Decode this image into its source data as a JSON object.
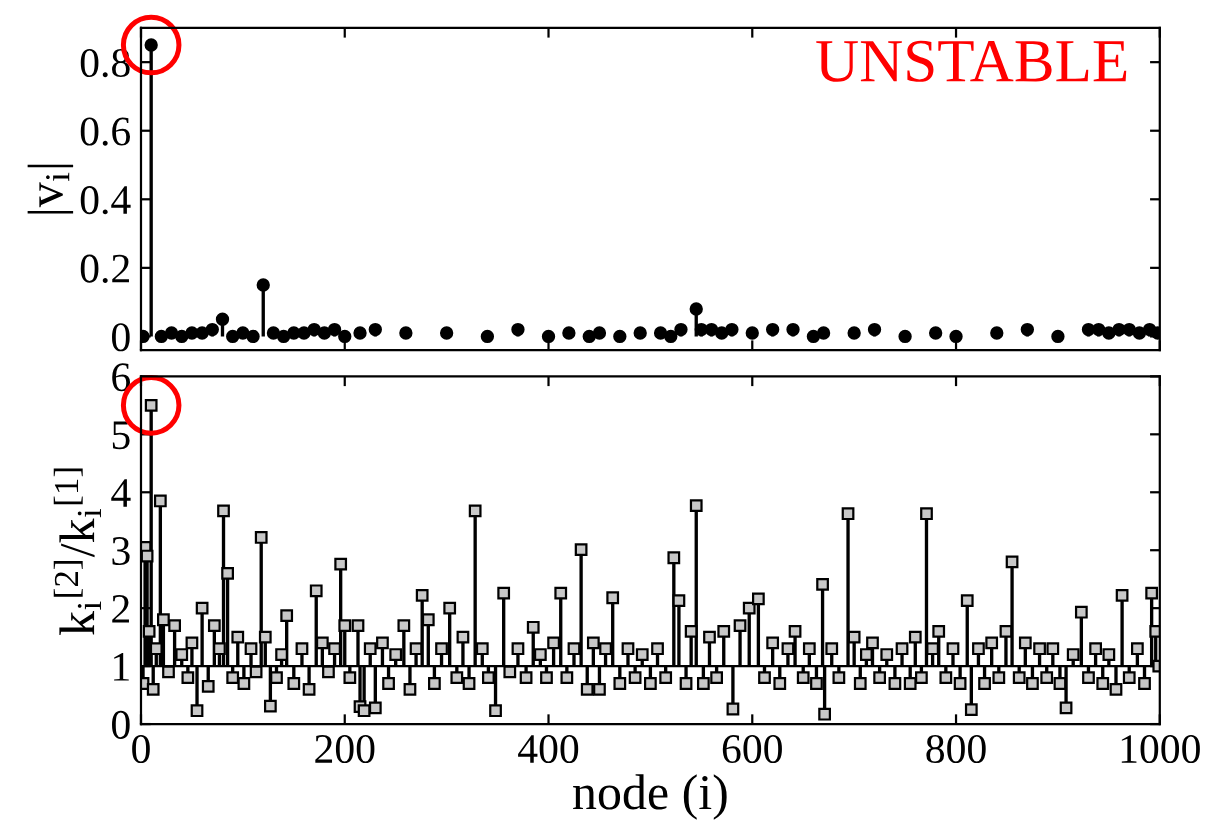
{
  "chart_data": [
    {
      "type": "lollipop",
      "ylabel": "|v$_{i}$|",
      "annotations": [
        "UNSTABLE"
      ],
      "marker": "circle",
      "tick_labels": "y",
      "xlim": [
        0,
        1000
      ],
      "xticks": [
        {
          "value": 0,
          "label": null
        },
        {
          "value": 200,
          "label": null
        },
        {
          "value": 400,
          "label": null
        },
        {
          "value": 600,
          "label": null
        },
        {
          "value": 800,
          "label": null
        },
        {
          "value": 1000,
          "label": null
        }
      ],
      "ylim": [
        -0.04,
        0.9
      ],
      "yticks": [
        0,
        0.2,
        0.4,
        0.6,
        0.8
      ],
      "series": [
        {
          "color": "#000000",
          "x": [
            2,
            10,
            20,
            30,
            40,
            50,
            60,
            70,
            80,
            90,
            100,
            110,
            120,
            130,
            140,
            150,
            160,
            170,
            180,
            190,
            200,
            215,
            230,
            260,
            300,
            340,
            370,
            400,
            420,
            440,
            450,
            470,
            490,
            510,
            520,
            530,
            545,
            550,
            560,
            570,
            580,
            600,
            620,
            640,
            660,
            670,
            700,
            720,
            750,
            780,
            800,
            840,
            870,
            900,
            930,
            940,
            950,
            960,
            970,
            980,
            990,
            998
          ],
          "values": [
            0,
            0.85,
            0,
            0.01,
            0,
            0.01,
            0.01,
            0.02,
            0.05,
            0,
            0.01,
            0,
            0.15,
            0.01,
            0,
            0.01,
            0.01,
            0.02,
            0.01,
            0.02,
            0,
            0.01,
            0.02,
            0.01,
            0.01,
            0,
            0.02,
            0,
            0.01,
            0,
            0.01,
            0,
            0.01,
            0.01,
            0,
            0.02,
            0.08,
            0.02,
            0.02,
            0.01,
            0.02,
            0.01,
            0.02,
            0.02,
            0,
            0.01,
            0.01,
            0.02,
            0,
            0.01,
            0,
            0.01,
            0.02,
            0,
            0.02,
            0.02,
            0.01,
            0.02,
            0.02,
            0.01,
            0.02,
            0.01
          ]
        }
      ]
    },
    {
      "type": "scatter",
      "ylabel": "k$_{i}$$^{[2]}$/k$_{i}$$^{[1]}$",
      "xlabel": "node (i)",
      "marker": "square",
      "xlim": [
        0,
        1000
      ],
      "xticks": [
        0,
        200,
        400,
        600,
        800,
        1000
      ],
      "ylim": [
        0,
        6
      ],
      "yticks": [
        0,
        1,
        2,
        3,
        4,
        5,
        6
      ],
      "ref_lines": [
        {
          "axis": "y",
          "value": 1
        }
      ],
      "series": [
        {
          "color": "#c8c8c8",
          "x": [
            2,
            4,
            6,
            8,
            10,
            12,
            15,
            19,
            22,
            27,
            33,
            40,
            46,
            50,
            55,
            60,
            66,
            72,
            77,
            81,
            85,
            90,
            95,
            101,
            108,
            113,
            118,
            122,
            127,
            133,
            138,
            143,
            150,
            158,
            165,
            172,
            178,
            184,
            190,
            196,
            200,
            205,
            213,
            215,
            219,
            225,
            230,
            237,
            243,
            250,
            258,
            264,
            270,
            276,
            282,
            288,
            295,
            303,
            310,
            316,
            322,
            328,
            335,
            341,
            348,
            356,
            362,
            370,
            378,
            385,
            392,
            398,
            405,
            412,
            418,
            425,
            432,
            438,
            444,
            450,
            456,
            463,
            470,
            478,
            485,
            492,
            500,
            507,
            515,
            523,
            528,
            535,
            540,
            545,
            552,
            558,
            565,
            572,
            581,
            588,
            597,
            606,
            612,
            620,
            627,
            635,
            642,
            650,
            656,
            663,
            669,
            671,
            678,
            685,
            694,
            700,
            706,
            712,
            718,
            725,
            732,
            740,
            747,
            755,
            760,
            766,
            771,
            777,
            783,
            790,
            797,
            804,
            811,
            815,
            822,
            828,
            835,
            842,
            849,
            855,
            862,
            868,
            875,
            882,
            889,
            895,
            902,
            908,
            915,
            923,
            930,
            937,
            944,
            950,
            957,
            963,
            970,
            978,
            985,
            992,
            996,
            999
          ],
          "errors": [
            [
              0.7,
              1
            ],
            [
              1,
              3.05
            ],
            [
              1,
              2.9
            ],
            [
              1,
              1.6
            ],
            [
              1,
              5.5
            ],
            [
              0.6,
              1
            ],
            [
              1,
              1.3
            ],
            [
              1,
              3.85
            ],
            [
              1,
              1.8
            ],
            [
              0.9,
              1
            ],
            [
              1,
              1.7
            ],
            [
              1,
              1.2
            ],
            [
              0.8,
              1
            ],
            [
              1,
              1.4
            ],
            [
              0.23,
              1
            ],
            [
              1,
              2.0
            ],
            [
              0.65,
              1
            ],
            [
              1,
              1.7
            ],
            [
              1,
              1.3
            ],
            [
              1,
              3.68
            ],
            [
              1,
              2.6
            ],
            [
              0.8,
              1
            ],
            [
              1,
              1.5
            ],
            [
              0.7,
              1
            ],
            [
              1,
              1.3
            ],
            [
              0.9,
              1
            ],
            [
              1,
              3.22
            ],
            [
              1,
              1.5
            ],
            [
              0.31,
              1
            ],
            [
              0.8,
              1
            ],
            [
              1,
              1.2
            ],
            [
              1,
              1.87
            ],
            [
              0.7,
              1
            ],
            [
              1,
              1.3
            ],
            [
              0.6,
              1
            ],
            [
              1,
              2.3
            ],
            [
              1,
              1.4
            ],
            [
              0.9,
              1
            ],
            [
              1,
              1.3
            ],
            [
              1,
              2.76
            ],
            [
              1,
              1.7
            ],
            [
              0.8,
              1
            ],
            [
              1,
              1.7
            ],
            [
              0.3,
              1
            ],
            [
              0.23,
              1
            ],
            [
              1,
              1.3
            ],
            [
              0.28,
              1
            ],
            [
              1,
              1.4
            ],
            [
              0.7,
              1
            ],
            [
              1,
              1.2
            ],
            [
              1,
              1.7
            ],
            [
              0.6,
              1
            ],
            [
              1,
              1.3
            ],
            [
              1,
              2.22
            ],
            [
              1,
              1.8
            ],
            [
              0.7,
              1
            ],
            [
              1,
              1.3
            ],
            [
              1,
              2.0
            ],
            [
              0.8,
              1
            ],
            [
              1,
              1.5
            ],
            [
              0.7,
              1
            ],
            [
              1,
              3.68
            ],
            [
              1,
              1.3
            ],
            [
              0.8,
              1
            ],
            [
              0.23,
              1
            ],
            [
              1,
              2.26
            ],
            [
              0.9,
              1
            ],
            [
              1,
              1.3
            ],
            [
              0.8,
              1
            ],
            [
              1,
              1.67
            ],
            [
              1,
              1.2
            ],
            [
              0.8,
              1
            ],
            [
              1,
              1.4
            ],
            [
              1,
              2.26
            ],
            [
              0.8,
              1
            ],
            [
              1,
              1.3
            ],
            [
              1,
              3.01
            ],
            [
              0.6,
              1
            ],
            [
              1,
              1.4
            ],
            [
              0.6,
              1
            ],
            [
              1,
              1.3
            ],
            [
              1,
              2.18
            ],
            [
              0.7,
              1
            ],
            [
              1,
              1.3
            ],
            [
              0.8,
              1
            ],
            [
              1,
              1.2
            ],
            [
              0.7,
              1
            ],
            [
              1,
              1.3
            ],
            [
              0.8,
              1
            ],
            [
              1,
              2.87
            ],
            [
              1,
              2.13
            ],
            [
              0.7,
              1
            ],
            [
              1,
              1.6
            ],
            [
              1,
              3.77
            ],
            [
              0.7,
              1
            ],
            [
              1,
              1.5
            ],
            [
              0.8,
              1
            ],
            [
              1,
              1.6
            ],
            [
              0.26,
              1
            ],
            [
              1,
              1.7
            ],
            [
              1,
              2.0
            ],
            [
              1,
              2.16
            ],
            [
              0.8,
              1
            ],
            [
              1,
              1.4
            ],
            [
              0.7,
              1
            ],
            [
              1,
              1.3
            ],
            [
              1,
              1.6
            ],
            [
              0.8,
              1
            ],
            [
              1,
              1.3
            ],
            [
              0.7,
              1
            ],
            [
              1,
              2.41
            ],
            [
              0.17,
              1
            ],
            [
              1,
              1.3
            ],
            [
              0.8,
              1
            ],
            [
              1,
              3.63
            ],
            [
              1,
              1.5
            ],
            [
              0.7,
              1
            ],
            [
              1,
              1.2
            ],
            [
              1,
              1.4
            ],
            [
              0.8,
              1
            ],
            [
              1,
              1.2
            ],
            [
              0.7,
              1
            ],
            [
              1,
              1.3
            ],
            [
              0.7,
              1
            ],
            [
              1,
              1.5
            ],
            [
              0.8,
              1
            ],
            [
              1,
              3.63
            ],
            [
              1,
              1.3
            ],
            [
              1,
              1.6
            ],
            [
              0.8,
              1
            ],
            [
              1,
              1.3
            ],
            [
              0.7,
              1
            ],
            [
              1,
              2.13
            ],
            [
              0.25,
              1
            ],
            [
              1,
              1.3
            ],
            [
              0.7,
              1
            ],
            [
              1,
              1.4
            ],
            [
              0.8,
              1
            ],
            [
              1,
              1.6
            ],
            [
              1,
              2.8
            ],
            [
              0.8,
              1
            ],
            [
              1,
              1.4
            ],
            [
              0.7,
              1
            ],
            [
              1,
              1.3
            ],
            [
              0.8,
              1
            ],
            [
              1,
              1.3
            ],
            [
              0.7,
              1
            ],
            [
              0.28,
              1
            ],
            [
              1,
              1.2
            ],
            [
              1,
              1.93
            ],
            [
              0.8,
              1
            ],
            [
              1,
              1.3
            ],
            [
              0.7,
              1
            ],
            [
              1,
              1.2
            ],
            [
              0.6,
              1
            ],
            [
              1,
              2.22
            ],
            [
              0.8,
              1
            ],
            [
              1,
              1.3
            ],
            [
              0.7,
              1
            ],
            [
              1,
              2.26
            ],
            [
              1,
              1.6
            ],
            null
          ],
          "values": [
            0.7,
            3.05,
            2.9,
            1.6,
            5.5,
            0.6,
            1.3,
            3.85,
            1.8,
            0.9,
            1.7,
            1.2,
            0.8,
            1.4,
            0.23,
            2.0,
            0.65,
            1.7,
            1.3,
            3.68,
            2.6,
            0.8,
            1.5,
            0.7,
            1.3,
            0.9,
            3.22,
            1.5,
            0.31,
            0.8,
            1.2,
            1.87,
            0.7,
            1.3,
            0.6,
            2.3,
            1.4,
            0.9,
            1.3,
            2.76,
            1.7,
            0.8,
            1.7,
            0.3,
            0.23,
            1.3,
            0.28,
            1.4,
            0.7,
            1.2,
            1.7,
            0.6,
            1.3,
            2.22,
            1.8,
            0.7,
            1.3,
            2.0,
            0.8,
            1.5,
            0.7,
            3.68,
            1.3,
            0.8,
            0.23,
            2.26,
            0.9,
            1.3,
            0.8,
            1.67,
            1.2,
            0.8,
            1.4,
            2.26,
            0.8,
            1.3,
            3.01,
            0.6,
            1.4,
            0.6,
            1.3,
            2.18,
            0.7,
            1.3,
            0.8,
            1.2,
            0.7,
            1.3,
            0.8,
            2.87,
            2.13,
            0.7,
            1.6,
            3.77,
            0.7,
            1.5,
            0.8,
            1.6,
            0.26,
            1.7,
            2.0,
            2.16,
            0.8,
            1.4,
            0.7,
            1.3,
            1.6,
            0.8,
            1.3,
            0.7,
            2.41,
            0.17,
            1.3,
            0.8,
            3.63,
            1.5,
            0.7,
            1.2,
            1.4,
            0.8,
            1.2,
            0.7,
            1.3,
            0.7,
            1.5,
            0.8,
            3.63,
            1.3,
            1.6,
            0.8,
            1.3,
            0.7,
            2.13,
            0.25,
            1.3,
            0.7,
            1.4,
            0.8,
            1.6,
            2.8,
            0.8,
            1.4,
            0.7,
            1.3,
            0.8,
            1.3,
            0.7,
            0.28,
            1.2,
            1.93,
            0.8,
            1.3,
            0.7,
            1.2,
            0.6,
            2.22,
            0.8,
            1.3,
            0.7,
            2.26,
            1.6,
            1.0
          ]
        }
      ]
    }
  ]
}
